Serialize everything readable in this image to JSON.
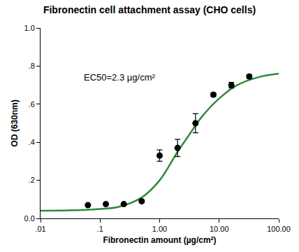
{
  "chart_data": {
    "type": "scatter",
    "title": "Fibronectin cell attachment assay (CHO cells)",
    "x_label": "Fibronectin amount (µg/cm²)",
    "y_label": "OD (630nm)",
    "log": "x",
    "grid": false,
    "xlim": [
      0.01,
      100
    ],
    "xticks": [
      {
        "value": 0.01,
        "label": ".01"
      },
      {
        "value": 0.1,
        "label": ".1"
      },
      {
        "value": 1,
        "label": "1.00"
      },
      {
        "value": 10,
        "label": "10.00"
      },
      {
        "value": 100,
        "label": "100.00"
      }
    ],
    "ylim": [
      0,
      1
    ],
    "yticks": [
      {
        "value": 0,
        "label": "0.0"
      },
      {
        "value": 0.2,
        "label": ".2"
      },
      {
        "value": 0.4,
        "label": ".4"
      },
      {
        "value": 0.6,
        "label": ".6"
      },
      {
        "value": 0.8,
        "label": ".8"
      },
      {
        "value": 1,
        "label": "1.0"
      }
    ],
    "annotations": [
      {
        "text": "EC50=2.3 µg/cm²",
        "x": 0.21,
        "y": 0.74
      }
    ],
    "series": [
      {
        "type": "line",
        "color": "#2e8b3a",
        "x": [
          0.01,
          0.03,
          0.1,
          0.2,
          0.5,
          1,
          2,
          3,
          5,
          10,
          20,
          50,
          100
        ],
        "values": [
          0.04,
          0.042,
          0.05,
          0.06,
          0.11,
          0.2,
          0.35,
          0.43,
          0.53,
          0.63,
          0.7,
          0.745,
          0.76
        ]
      },
      {
        "type": "scatter",
        "color": "#000000",
        "marker": "circle",
        "x": [
          0.0625,
          0.125,
          0.25,
          0.5,
          1,
          2,
          4,
          8,
          16,
          32
        ],
        "values": [
          0.07,
          0.075,
          0.075,
          0.09,
          0.33,
          0.37,
          0.5,
          0.65,
          0.7,
          0.745
        ],
        "error": [
          0.005,
          0.005,
          0.005,
          0.005,
          0.03,
          0.045,
          0.05,
          0.01,
          0.015,
          0.01
        ]
      }
    ]
  }
}
